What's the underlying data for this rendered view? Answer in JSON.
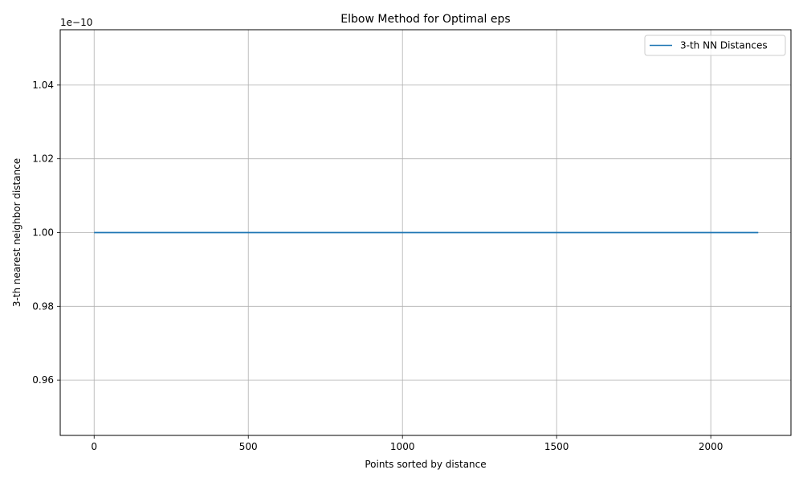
{
  "chart_data": {
    "type": "line",
    "title": "Elbow Method for Optimal eps",
    "xlabel": "Points sorted by distance",
    "ylabel": "3-th nearest neighbor distance",
    "offset_label": "1e−10",
    "xlim": [
      -110,
      2260
    ],
    "ylim": [
      0.945,
      1.055
    ],
    "x_ticks": [
      0,
      500,
      1000,
      1500,
      2000
    ],
    "x_tick_labels": [
      "0",
      "500",
      "1000",
      "1500",
      "2000"
    ],
    "y_ticks": [
      0.96,
      0.98,
      1.0,
      1.02,
      1.04
    ],
    "y_tick_labels": [
      "0.96",
      "0.98",
      "1.00",
      "1.02",
      "1.04"
    ],
    "grid": true,
    "legend_position": "top-right",
    "series": [
      {
        "name": "3-th NN Distances",
        "color": "#1f77b4",
        "x": [
          0,
          2154
        ],
        "y": [
          1.0,
          1.0
        ]
      }
    ]
  }
}
